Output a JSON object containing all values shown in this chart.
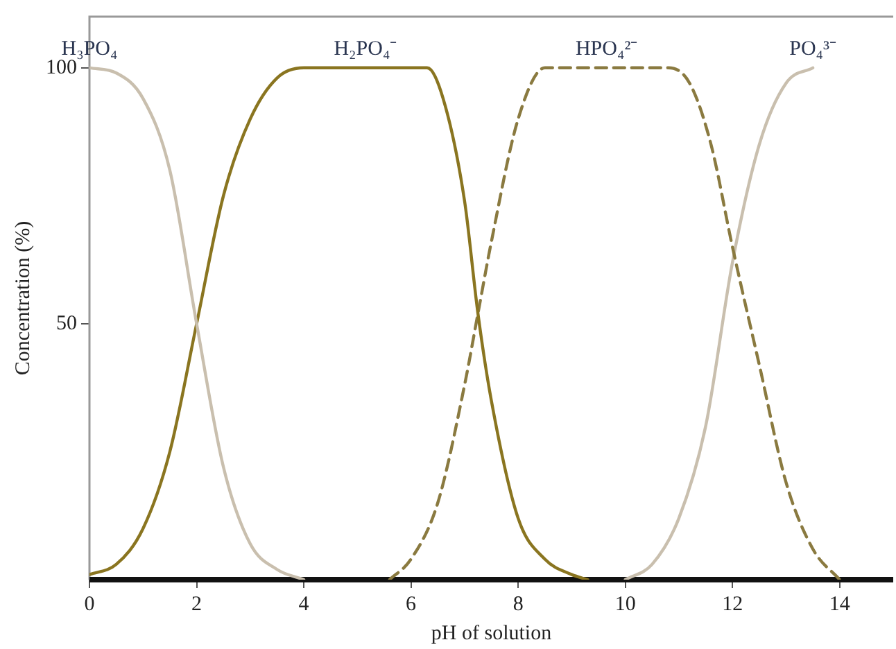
{
  "chart_data": {
    "type": "line",
    "xlabel": "pH of solution",
    "ylabel": "Concentration (%)",
    "xlim": [
      0,
      15
    ],
    "xticks": [
      0,
      2,
      4,
      6,
      8,
      10,
      12,
      14
    ],
    "ylim": [
      0,
      110
    ],
    "yticks": [
      50,
      100
    ],
    "grid": false,
    "legend": false,
    "marker": "none",
    "series": [
      {
        "name": "H₃PO₄",
        "color": "#c9bfae",
        "line_style": "solid",
        "x": [
          0,
          0.5,
          1,
          1.5,
          2,
          2.5,
          3,
          3.5,
          4
        ],
        "values": [
          100,
          99,
          94,
          80,
          50,
          22,
          7,
          2,
          0
        ]
      },
      {
        "name": "H₂PO₄⁻",
        "color": "#8a7520",
        "line_style": "solid",
        "x": [
          0,
          0.5,
          1,
          1.5,
          2,
          2.5,
          3,
          3.5,
          4,
          6.3,
          6.6,
          7,
          7.25,
          7.5,
          8,
          8.5,
          9,
          9.3
        ],
        "values": [
          1,
          3,
          10,
          25,
          50,
          75,
          90,
          98,
          100,
          100,
          94,
          74,
          52,
          35,
          12,
          4,
          1,
          0
        ]
      },
      {
        "name": "HPO₄²⁻",
        "color": "#8a7a40",
        "line_style": "dashed",
        "x": [
          5.6,
          6,
          6.5,
          7,
          7.25,
          7.5,
          8,
          8.5,
          10.8,
          11.2,
          11.6,
          12,
          12.5,
          13,
          13.5,
          14
        ],
        "values": [
          0,
          4,
          15,
          38,
          52,
          66,
          90,
          100,
          100,
          97,
          85,
          65,
          42,
          19,
          6,
          0
        ]
      },
      {
        "name": "PO₄³⁻",
        "color": "#c9bfae",
        "line_style": "solid",
        "x": [
          10,
          10.5,
          11,
          11.5,
          12,
          12.5,
          13,
          13.5
        ],
        "values": [
          0,
          3,
          12,
          30,
          62,
          85,
          97,
          100
        ]
      }
    ]
  }
}
